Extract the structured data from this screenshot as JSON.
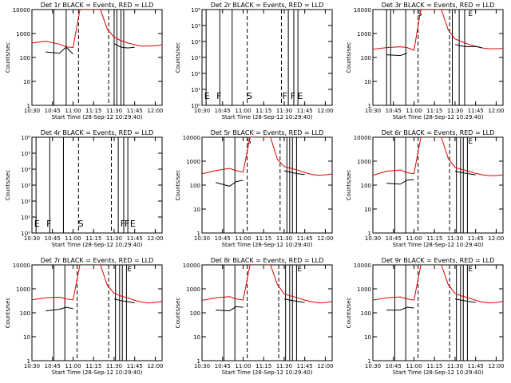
{
  "page": {
    "xlabel": "Start Time (28-Sep-12 10:29:40)",
    "ylabel": "Counts/sec",
    "x_ticks": [
      "10:30",
      "10:45",
      "11:00",
      "11:15",
      "11:30",
      "11:45",
      "12:00"
    ],
    "colors": {
      "events": "#000000",
      "lld": "#dd0000",
      "axes": "#000000"
    }
  },
  "chart_data": [
    {
      "type": "line",
      "title": "Det 1r BLACK = Events, RED = LLD",
      "xlabel": "Start Time (28-Sep-12 10:29:40)",
      "ylabel": "Counts/sec",
      "xlim": [
        "10:30",
        "12:05"
      ],
      "ylim": [
        1,
        10000
      ],
      "y_scale": "log",
      "y_ticks": [
        "1",
        "10",
        "100",
        "1000",
        "10000"
      ],
      "x_ticks": [
        "10:30",
        "10:45",
        "11:00",
        "11:15",
        "11:30",
        "11:45",
        "12:00"
      ],
      "x": [
        "10:30",
        "10:40",
        "10:50",
        "10:55",
        "11:00",
        "11:05",
        "11:10",
        "11:15",
        "11:20",
        "11:25",
        "11:30",
        "11:35",
        "11:40",
        "11:45",
        "11:50",
        "11:55",
        "12:00",
        "12:05"
      ],
      "series": [
        {
          "key": "lld",
          "color": "#dd0000",
          "values": [
            400,
            480,
            360,
            280,
            260,
            10000,
            10000,
            10000,
            10000,
            1500,
            700,
            500,
            400,
            340,
            300,
            300,
            310,
            330
          ]
        },
        {
          "key": "events",
          "color": "#000000",
          "values": [
            null,
            170,
            150,
            270,
            140,
            null,
            null,
            null,
            null,
            null,
            380,
            270,
            250,
            270,
            null,
            null,
            null,
            null
          ]
        }
      ],
      "markers": {
        "solid": [
          "10:46",
          "10:55",
          "11:30",
          "11:32",
          "11:35",
          "11:37"
        ],
        "dashed": [
          "11:04",
          "11:26"
        ]
      },
      "marker_labels": []
    },
    {
      "type": "line",
      "title": "Det 2r BLACK = Events, RED = LLD",
      "xlabel": "Start Time (28-Sep-12 10:29:40)",
      "ylabel": "Counts/sec",
      "xlim": [
        "10:30",
        "12:05"
      ],
      "ylim": [
        1,
        1000000
      ],
      "y_scale": "log",
      "y_ticks": [
        "10⁰",
        "10¹",
        "10²",
        "10³",
        "10⁴",
        "10⁵",
        "10⁶"
      ],
      "x_ticks": [
        "10:30",
        "10:45",
        "11:00",
        "11:15",
        "11:30",
        "11:45",
        "12:00"
      ],
      "x": [],
      "series": [],
      "markers": {
        "solid": [
          "10:33",
          "10:43",
          "10:52",
          "11:33",
          "11:37",
          "11:40"
        ],
        "dashed": [
          "11:03",
          "11:28"
        ]
      },
      "marker_labels": [
        {
          "at": "10:31",
          "text": "E"
        },
        {
          "at": "10:40",
          "text": "F"
        },
        {
          "at": "11:02",
          "text": "S"
        },
        {
          "at": "11:28",
          "text": "F"
        },
        {
          "at": "11:34",
          "text": "F"
        },
        {
          "at": "11:39",
          "text": "E"
        }
      ]
    },
    {
      "type": "line",
      "title": "Det 3r BLACK = Events, RED = LLD",
      "xlabel": "Start Time (28-Sep-12 10:29:40)",
      "ylabel": "Counts/sec",
      "xlim": [
        "10:30",
        "12:05"
      ],
      "ylim": [
        1,
        10000
      ],
      "y_scale": "log",
      "y_ticks": [
        "1",
        "10",
        "100",
        "1000",
        "10000"
      ],
      "x_ticks": [
        "10:30",
        "10:45",
        "11:00",
        "11:15",
        "11:30",
        "11:45",
        "12:00"
      ],
      "x": [
        "10:30",
        "10:40",
        "10:50",
        "10:55",
        "11:00",
        "11:05",
        "11:10",
        "11:15",
        "11:20",
        "11:25",
        "11:30",
        "11:35",
        "11:40",
        "11:45",
        "11:50",
        "11:55",
        "12:00",
        "12:05"
      ],
      "series": [
        {
          "key": "lld",
          "color": "#dd0000",
          "values": [
            220,
            260,
            280,
            260,
            200,
            10000,
            10000,
            10000,
            10000,
            1400,
            600,
            450,
            350,
            290,
            250,
            230,
            230,
            240
          ]
        },
        {
          "key": "events",
          "color": "#000000",
          "values": [
            null,
            130,
            120,
            150,
            null,
            null,
            null,
            null,
            null,
            null,
            350,
            300,
            280,
            290,
            250,
            null,
            null,
            null
          ]
        }
      ],
      "markers": {
        "solid": [
          "10:40",
          "10:43",
          "10:54",
          "11:28",
          "11:33",
          "11:37"
        ],
        "dashed": [
          "11:03",
          "11:26"
        ]
      },
      "marker_labels": [
        {
          "at": "11:02",
          "text": "S"
        },
        {
          "at": "11:39",
          "text": "E"
        }
      ]
    },
    {
      "type": "line",
      "title": "Det 4r BLACK = Events, RED = LLD",
      "xlabel": "Start Time (28-Sep-12 10:29:40)",
      "ylabel": "Counts/sec",
      "xlim": [
        "10:30",
        "12:05"
      ],
      "ylim": [
        1,
        1000000
      ],
      "y_scale": "log",
      "y_ticks": [
        "10⁰",
        "10¹",
        "10²",
        "10³",
        "10⁴",
        "10⁵",
        "10⁶"
      ],
      "x_ticks": [
        "10:30",
        "10:45",
        "11:00",
        "11:15",
        "11:30",
        "11:45",
        "12:00"
      ],
      "x": [],
      "series": [],
      "markers": {
        "solid": [
          "10:33",
          "10:43",
          "10:53",
          "11:33",
          "11:37",
          "11:40"
        ],
        "dashed": [
          "11:04",
          "11:28"
        ]
      },
      "marker_labels": [
        {
          "at": "10:31",
          "text": "E"
        },
        {
          "at": "10:40",
          "text": "F"
        },
        {
          "at": "11:03",
          "text": "S"
        },
        {
          "at": "11:34",
          "text": "F"
        },
        {
          "at": "11:37",
          "text": "F"
        },
        {
          "at": "11:41",
          "text": "E"
        }
      ]
    },
    {
      "type": "line",
      "title": "Det 5r BLACK = Events, RED = LLD",
      "xlabel": "Start Time (28-Sep-12 10:29:40)",
      "ylabel": "Counts/sec",
      "xlim": [
        "10:30",
        "12:05"
      ],
      "ylim": [
        1,
        10000
      ],
      "y_scale": "log",
      "y_ticks": [
        "1",
        "10",
        "100",
        "1000",
        "10000"
      ],
      "x_ticks": [
        "10:30",
        "10:45",
        "11:00",
        "11:15",
        "11:30",
        "11:45",
        "12:00"
      ],
      "x": [
        "10:30",
        "10:40",
        "10:50",
        "10:55",
        "11:00",
        "11:05",
        "11:10",
        "11:15",
        "11:20",
        "11:25",
        "11:30",
        "11:35",
        "11:40",
        "11:45",
        "11:50",
        "11:55",
        "12:00",
        "12:05"
      ],
      "series": [
        {
          "key": "lld",
          "color": "#dd0000",
          "values": [
            300,
            400,
            500,
            400,
            350,
            10000,
            10000,
            10000,
            10000,
            1200,
            600,
            500,
            420,
            340,
            280,
            260,
            270,
            290
          ]
        },
        {
          "key": "events",
          "color": "#000000",
          "values": [
            null,
            130,
            90,
            140,
            160,
            null,
            null,
            null,
            null,
            null,
            400,
            340,
            300,
            280,
            null,
            null,
            null,
            null
          ]
        }
      ],
      "markers": {
        "solid": [
          "10:46",
          "10:54",
          "11:32",
          "11:34",
          "11:36",
          "11:39"
        ],
        "dashed": [
          "11:03",
          "11:27"
        ]
      },
      "marker_labels": [
        {
          "at": "11:02",
          "text": "S"
        }
      ]
    },
    {
      "type": "line",
      "title": "Det 6r BLACK = Events, RED = LLD",
      "xlabel": "Start Time (28-Sep-12 10:29:40)",
      "ylabel": "Counts/sec",
      "xlim": [
        "10:30",
        "12:05"
      ],
      "ylim": [
        1,
        10000
      ],
      "y_scale": "log",
      "y_ticks": [
        "1",
        "10",
        "100",
        "1000",
        "10000"
      ],
      "x_ticks": [
        "10:30",
        "10:45",
        "11:00",
        "11:15",
        "11:30",
        "11:45",
        "12:00"
      ],
      "x": [
        "10:30",
        "10:40",
        "10:50",
        "10:55",
        "11:00",
        "11:05",
        "11:10",
        "11:15",
        "11:20",
        "11:25",
        "11:30",
        "11:35",
        "11:40",
        "11:45",
        "11:50",
        "11:55",
        "12:00",
        "12:05"
      ],
      "series": [
        {
          "key": "lld",
          "color": "#dd0000",
          "values": [
            260,
            380,
            430,
            330,
            300,
            10000,
            10000,
            10000,
            10000,
            1300,
            550,
            450,
            380,
            310,
            270,
            250,
            250,
            270
          ]
        },
        {
          "key": "events",
          "color": "#000000",
          "values": [
            null,
            120,
            110,
            160,
            170,
            null,
            null,
            null,
            null,
            null,
            380,
            330,
            300,
            270,
            null,
            null,
            null,
            null
          ]
        }
      ],
      "markers": {
        "solid": [
          "10:46",
          "10:54",
          "11:31",
          "11:34",
          "11:36",
          "11:39"
        ],
        "dashed": [
          "11:03",
          "11:26"
        ]
      },
      "marker_labels": [
        {
          "at": "11:39",
          "text": "E"
        }
      ]
    },
    {
      "type": "line",
      "title": "Det 7r BLACK = Events, RED = LLD",
      "xlabel": "Start Time (28-Sep-12 10:29:40)",
      "ylabel": "Counts/sec",
      "xlim": [
        "10:30",
        "12:05"
      ],
      "ylim": [
        1,
        10000
      ],
      "y_scale": "log",
      "y_ticks": [
        "1",
        "10",
        "100",
        "1000",
        "10000"
      ],
      "x_ticks": [
        "10:30",
        "10:45",
        "11:00",
        "11:15",
        "11:30",
        "11:45",
        "12:00"
      ],
      "x": [
        "10:30",
        "10:40",
        "10:50",
        "10:55",
        "11:00",
        "11:05",
        "11:10",
        "11:15",
        "11:20",
        "11:25",
        "11:30",
        "11:35",
        "11:40",
        "11:45",
        "11:50",
        "11:55",
        "12:00",
        "12:05"
      ],
      "series": [
        {
          "key": "lld",
          "color": "#dd0000",
          "values": [
            350,
            420,
            450,
            380,
            350,
            10000,
            10000,
            10000,
            10000,
            1400,
            650,
            500,
            420,
            330,
            280,
            260,
            270,
            300
          ]
        },
        {
          "key": "events",
          "color": "#000000",
          "values": [
            null,
            120,
            140,
            170,
            150,
            null,
            null,
            null,
            null,
            null,
            380,
            320,
            290,
            260,
            null,
            null,
            null,
            null
          ]
        }
      ],
      "markers": {
        "solid": [
          "10:46",
          "10:54",
          "11:31",
          "11:34",
          "11:36",
          "11:39"
        ],
        "dashed": [
          "11:03",
          "11:26"
        ]
      },
      "marker_labels": [
        {
          "at": "11:39",
          "text": "E"
        }
      ]
    },
    {
      "type": "line",
      "title": "Det 8r BLACK = Events, RED = LLD",
      "xlabel": "Start Time (28-Sep-12 10:29:40)",
      "ylabel": "Counts/sec",
      "xlim": [
        "10:30",
        "12:05"
      ],
      "ylim": [
        1,
        10000
      ],
      "y_scale": "log",
      "y_ticks": [
        "1",
        "10",
        "100",
        "1000",
        "10000"
      ],
      "x_ticks": [
        "10:30",
        "10:45",
        "11:00",
        "11:15",
        "11:30",
        "11:45",
        "12:00"
      ],
      "x": [
        "10:30",
        "10:40",
        "10:50",
        "10:55",
        "11:00",
        "11:05",
        "11:10",
        "11:15",
        "11:20",
        "11:25",
        "11:30",
        "11:35",
        "11:40",
        "11:45",
        "11:50",
        "11:55",
        "12:00",
        "12:05"
      ],
      "series": [
        {
          "key": "lld",
          "color": "#dd0000",
          "values": [
            330,
            420,
            470,
            380,
            340,
            10000,
            10000,
            10000,
            10000,
            1500,
            620,
            500,
            420,
            340,
            290,
            260,
            270,
            300
          ]
        },
        {
          "key": "events",
          "color": "#000000",
          "values": [
            null,
            130,
            120,
            180,
            170,
            null,
            null,
            null,
            null,
            null,
            380,
            330,
            300,
            270,
            null,
            null,
            null,
            null
          ]
        }
      ],
      "markers": {
        "solid": [
          "10:46",
          "10:54",
          "11:31",
          "11:34",
          "11:36",
          "11:39"
        ],
        "dashed": [
          "11:03",
          "11:26"
        ]
      },
      "marker_labels": [
        {
          "at": "11:39",
          "text": "E"
        }
      ]
    },
    {
      "type": "line",
      "title": "Det 9r BLACK = Events, RED = LLD",
      "xlabel": "Start Time (28-Sep-12 10:29:40)",
      "ylabel": "Counts/sec",
      "xlim": [
        "10:30",
        "12:05"
      ],
      "ylim": [
        1,
        10000
      ],
      "y_scale": "log",
      "y_ticks": [
        "1",
        "10",
        "100",
        "1000",
        "10000"
      ],
      "x_ticks": [
        "10:30",
        "10:45",
        "11:00",
        "11:15",
        "11:30",
        "11:45",
        "12:00"
      ],
      "x": [
        "10:30",
        "10:40",
        "10:50",
        "10:55",
        "11:00",
        "11:05",
        "11:10",
        "11:15",
        "11:20",
        "11:25",
        "11:30",
        "11:35",
        "11:40",
        "11:45",
        "11:50",
        "11:55",
        "12:00",
        "12:05"
      ],
      "series": [
        {
          "key": "lld",
          "color": "#dd0000",
          "values": [
            340,
            420,
            460,
            380,
            340,
            10000,
            10000,
            10000,
            10000,
            1500,
            640,
            500,
            420,
            330,
            280,
            260,
            270,
            300
          ]
        },
        {
          "key": "events",
          "color": "#000000",
          "values": [
            null,
            130,
            130,
            170,
            160,
            null,
            null,
            null,
            null,
            null,
            380,
            330,
            300,
            270,
            null,
            null,
            null,
            null
          ]
        }
      ],
      "markers": {
        "solid": [
          "10:46",
          "10:54",
          "11:31",
          "11:34",
          "11:36",
          "11:39"
        ],
        "dashed": [
          "11:03",
          "11:26"
        ]
      },
      "marker_labels": [
        {
          "at": "11:39",
          "text": "E"
        }
      ]
    }
  ]
}
